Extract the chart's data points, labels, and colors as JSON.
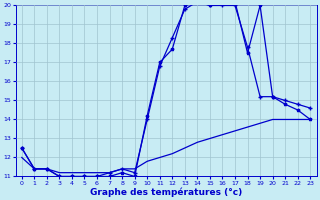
{
  "title": "Graphe des températures (°c)",
  "bg_color": "#c8ecf4",
  "line_color": "#0000cc",
  "grid_color": "#a0c4d0",
  "xlim": [
    -0.5,
    23.5
  ],
  "ylim": [
    11,
    20
  ],
  "yticks": [
    11,
    12,
    13,
    14,
    15,
    16,
    17,
    18,
    19,
    20
  ],
  "xticks": [
    0,
    1,
    2,
    3,
    4,
    5,
    6,
    7,
    8,
    9,
    10,
    11,
    12,
    13,
    14,
    15,
    16,
    17,
    18,
    19,
    20,
    21,
    22,
    23
  ],
  "line1_x": [
    0,
    1,
    2,
    3,
    4,
    5,
    6,
    7,
    8,
    9,
    10,
    11,
    12,
    13,
    14,
    15,
    16,
    17,
    18,
    19,
    20,
    21,
    22,
    23
  ],
  "line1_y": [
    12.5,
    11.4,
    11.4,
    11.0,
    11.0,
    11.0,
    11.0,
    11.0,
    11.2,
    11.0,
    14.2,
    17.0,
    17.7,
    20.0,
    20.2,
    20.0,
    20.2,
    20.2,
    17.5,
    20.0,
    15.2,
    14.8,
    14.5,
    14.0
  ],
  "line2_x": [
    0,
    1,
    2,
    3,
    4,
    5,
    6,
    7,
    8,
    9,
    10,
    11,
    12,
    13,
    14,
    15,
    16,
    17,
    18,
    19,
    20,
    21,
    22,
    23
  ],
  "line2_y": [
    12.5,
    11.4,
    11.4,
    11.0,
    11.0,
    11.0,
    11.0,
    11.2,
    11.4,
    11.2,
    14.0,
    16.8,
    18.3,
    19.8,
    20.2,
    20.0,
    20.0,
    20.0,
    17.8,
    15.2,
    15.2,
    15.0,
    14.8,
    14.6
  ],
  "line3_x": [
    0,
    1,
    2,
    3,
    4,
    5,
    6,
    7,
    8,
    9,
    10,
    11,
    12,
    13,
    14,
    15,
    16,
    17,
    18,
    19,
    20,
    21,
    22,
    23
  ],
  "line3_y": [
    12.0,
    11.4,
    11.4,
    11.2,
    11.2,
    11.2,
    11.2,
    11.2,
    11.4,
    11.4,
    11.8,
    12.0,
    12.2,
    12.5,
    12.8,
    13.0,
    13.2,
    13.4,
    13.6,
    13.8,
    14.0,
    14.0,
    14.0,
    14.0
  ]
}
